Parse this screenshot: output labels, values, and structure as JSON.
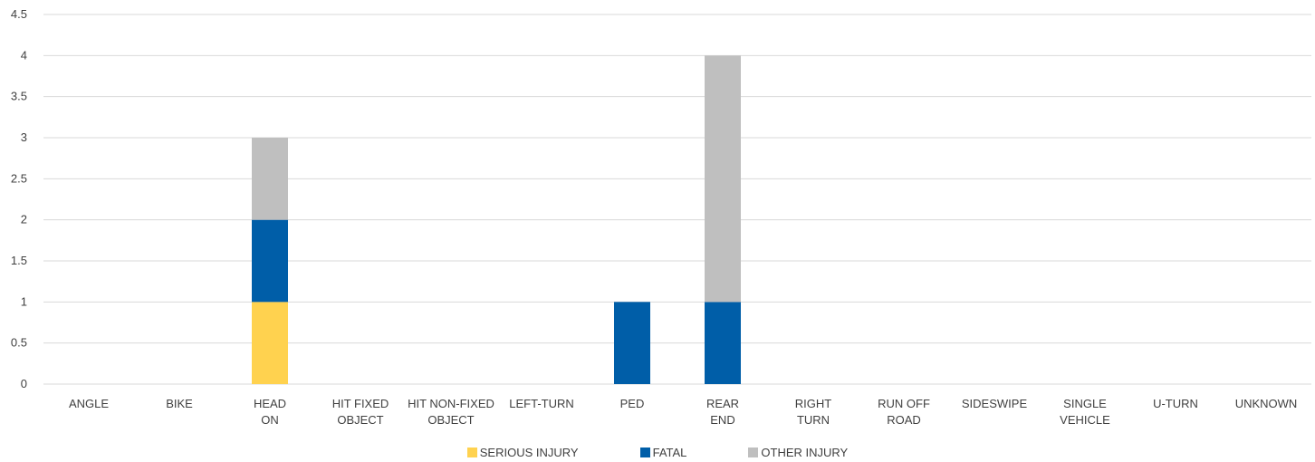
{
  "chart_data": {
    "type": "bar",
    "stacked": true,
    "categories": [
      [
        "ANGLE"
      ],
      [
        "BIKE"
      ],
      [
        "HEAD",
        "ON"
      ],
      [
        "HIT FIXED",
        "OBJECT"
      ],
      [
        "HIT NON-FIXED",
        "OBJECT"
      ],
      [
        "LEFT-TURN"
      ],
      [
        "PED"
      ],
      [
        "REAR",
        "END"
      ],
      [
        "RIGHT",
        "TURN"
      ],
      [
        "RUN OFF",
        "ROAD"
      ],
      [
        "SIDESWIPE"
      ],
      [
        "SINGLE",
        "VEHICLE"
      ],
      [
        "U-TURN"
      ],
      [
        "UNKNOWN"
      ]
    ],
    "series": [
      {
        "name": "SERIOUS INJURY",
        "color": "#FFD24F",
        "values": [
          0,
          0,
          1,
          0,
          0,
          0,
          0,
          0,
          0,
          0,
          0,
          0,
          0,
          0
        ]
      },
      {
        "name": "FATAL",
        "color": "#005EA8",
        "values": [
          0,
          0,
          1,
          0,
          0,
          0,
          1,
          1,
          0,
          0,
          0,
          0,
          0,
          0
        ]
      },
      {
        "name": "OTHER INJURY",
        "color": "#BFBFBF",
        "values": [
          0,
          0,
          1,
          0,
          0,
          0,
          0,
          3,
          0,
          0,
          0,
          0,
          0,
          0
        ]
      }
    ],
    "ylim": [
      0,
      4.5
    ],
    "yticks": [
      "0",
      "0.5",
      "1",
      "1.5",
      "2",
      "2.5",
      "3",
      "3.5",
      "4",
      "4.5"
    ],
    "grid": true,
    "legend_position": "bottom",
    "title": "",
    "xlabel": "",
    "ylabel": ""
  }
}
